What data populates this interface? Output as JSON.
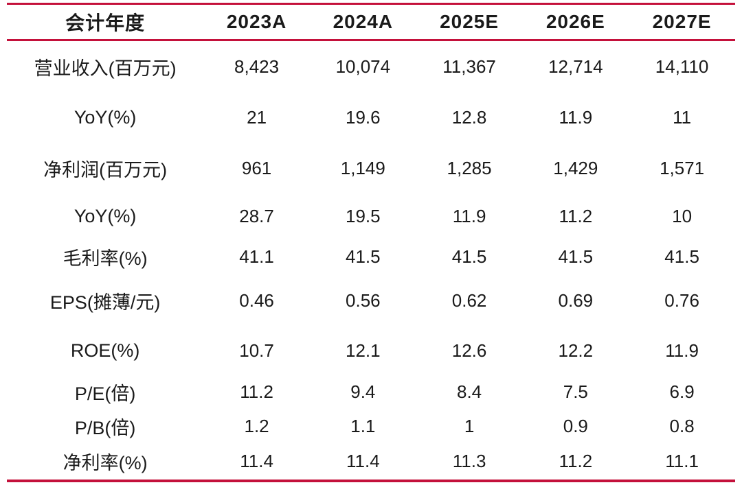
{
  "colors": {
    "accent": "#C4113B",
    "text": "#1A1A1A",
    "background": "#FFFFFF"
  },
  "table": {
    "columns": [
      "会计年度",
      "2023A",
      "2024A",
      "2025E",
      "2026E",
      "2027E"
    ],
    "rows": [
      {
        "label": "营业收入(百万元)",
        "values": [
          "8,423",
          "10,074",
          "11,367",
          "12,714",
          "14,110"
        ]
      },
      {
        "label": "YoY(%)",
        "values": [
          "21",
          "19.6",
          "12.8",
          "11.9",
          "11"
        ]
      },
      {
        "label": "净利润(百万元)",
        "values": [
          "961",
          "1,149",
          "1,285",
          "1,429",
          "1,571"
        ]
      },
      {
        "label": "YoY(%)",
        "values": [
          "28.7",
          "19.5",
          "11.9",
          "11.2",
          "10"
        ]
      },
      {
        "label": "毛利率(%)",
        "values": [
          "41.1",
          "41.5",
          "41.5",
          "41.5",
          "41.5"
        ]
      },
      {
        "label": "EPS(摊薄/元)",
        "values": [
          "0.46",
          "0.56",
          "0.62",
          "0.69",
          "0.76"
        ]
      },
      {
        "label": "ROE(%)",
        "values": [
          "10.7",
          "12.1",
          "12.6",
          "12.2",
          "11.9"
        ]
      },
      {
        "label": "P/E(倍)",
        "values": [
          "11.2",
          "9.4",
          "8.4",
          "7.5",
          "6.9"
        ]
      },
      {
        "label": "P/B(倍)",
        "values": [
          "1.2",
          "1.1",
          "1",
          "0.9",
          "0.8"
        ]
      },
      {
        "label": "净利率(%)",
        "values": [
          "11.4",
          "11.4",
          "11.3",
          "11.2",
          "11.1"
        ]
      }
    ]
  }
}
